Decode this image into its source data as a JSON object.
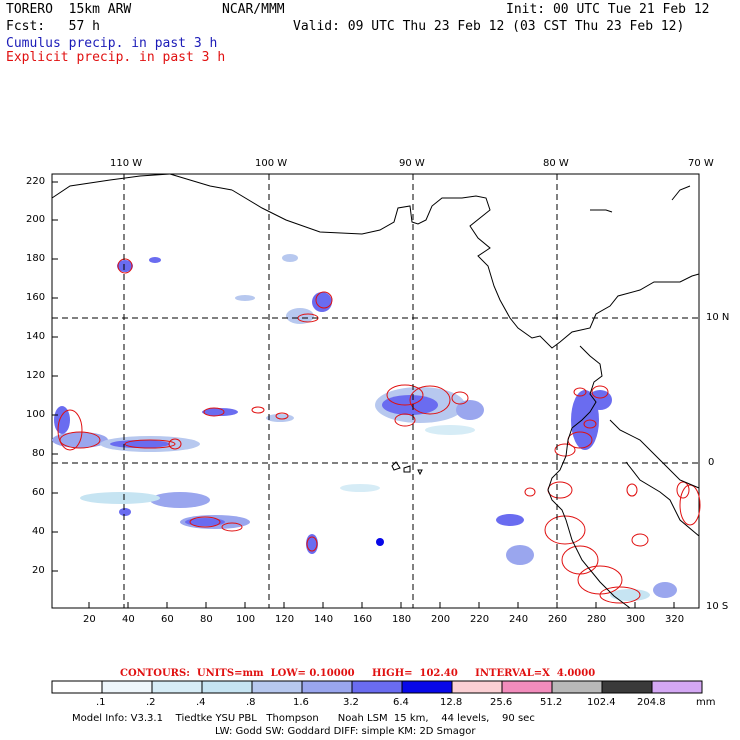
{
  "header": {
    "model": "TORERO  15km ARW",
    "org": "NCAR/MMM",
    "init": "Init: 00 UTC Tue 21 Feb 12",
    "fcst": "Fcst:   57 h",
    "valid": "Valid: 09 UTC Thu 23 Feb 12 (03 CST Thu 23 Feb 12)",
    "line_blue": "Cumulus precip. in past 3 h",
    "line_red": "Explicit precip. in past 3 h"
  },
  "map": {
    "lon_labels": [
      "110 W",
      "100 W",
      "90 W",
      "80 W",
      "70 W"
    ],
    "lat_labels": [
      "10 N",
      "0",
      "10 S"
    ],
    "y_ticks": [
      "220",
      "200",
      "180",
      "160",
      "140",
      "120",
      "100",
      "80",
      "60",
      "40",
      "20"
    ],
    "x_ticks": [
      "20",
      "40",
      "60",
      "80",
      "100",
      "120",
      "140",
      "160",
      "180",
      "200",
      "220",
      "240",
      "260",
      "280",
      "300",
      "320"
    ]
  },
  "contours_info": {
    "label": "CONTOURS:  UNITS=mm  LOW= 0.10000     HIGH=  102.40     INTERVAL=X  4.0000"
  },
  "colorbar": {
    "labels": [
      ".1",
      ".2",
      ".4",
      ".8",
      "1.6",
      "3.2",
      "6.4",
      "12.8",
      "25.6",
      "51.2",
      "102.4",
      "204.8"
    ],
    "unit": "mm",
    "colors": [
      "#ffffff",
      "#eef6fb",
      "#d6ecf6",
      "#c6e4f2",
      "#b7c8ef",
      "#9aa6ee",
      "#6a6cf0",
      "#0808e8",
      "#fbd0d4",
      "#f28cbc",
      "#b8b8b8",
      "#3a3a3a",
      "#d4a8f4"
    ]
  },
  "footer": {
    "line1": "Model Info: V3.3.1    Tiedtke YSU PBL   Thompson      Noah LSM  15 km,    44 levels,    90 sec",
    "line2": "LW: Godd SW: Goddard DIFF: simple KM: 2D Smagor"
  }
}
